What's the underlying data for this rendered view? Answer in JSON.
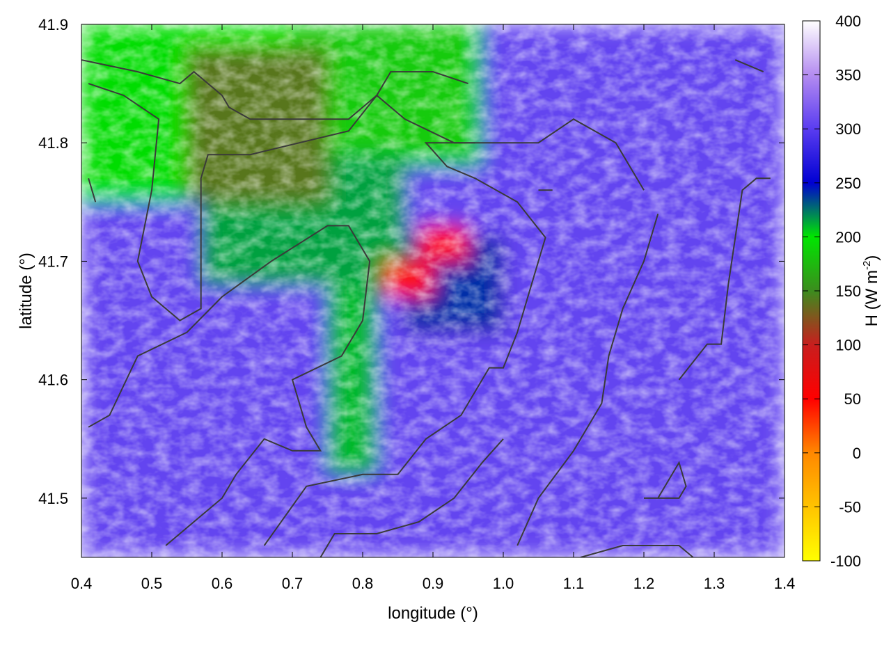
{
  "chart_data": {
    "type": "heatmap",
    "xlabel": "longitude (°)",
    "ylabel": "latitude (°)",
    "xlim": [
      0.4,
      1.4
    ],
    "ylim": [
      41.45,
      41.9
    ],
    "xticks": [
      "0.4",
      "0.5",
      "0.6",
      "0.7",
      "0.8",
      "0.9",
      "1.0",
      "1.1",
      "1.2",
      "1.3",
      "1.4"
    ],
    "yticks": [
      "41.5",
      "41.6",
      "41.7",
      "41.8",
      "41.9"
    ],
    "xtick_values": [
      0.4,
      0.5,
      0.6,
      0.7,
      0.8,
      0.9,
      1.0,
      1.1,
      1.2,
      1.3,
      1.4
    ],
    "ytick_values": [
      41.5,
      41.6,
      41.7,
      41.8,
      41.9
    ],
    "colorbar": {
      "label": "H (W m",
      "label_sup": "-2",
      "label_end": ")",
      "range": [
        -100,
        400
      ],
      "ticks": [
        "400",
        "350",
        "300",
        "250",
        "200",
        "150",
        "100",
        "50",
        "0",
        "-50",
        "-100"
      ],
      "tick_values": [
        400,
        350,
        300,
        250,
        200,
        150,
        100,
        50,
        0,
        -50,
        -100
      ],
      "colors": [
        {
          "v": -100,
          "c": "#ffff00"
        },
        {
          "v": 0,
          "c": "#ff8800"
        },
        {
          "v": 50,
          "c": "#ff0000"
        },
        {
          "v": 100,
          "c": "#c81e1e"
        },
        {
          "v": 150,
          "c": "#3c8c1e"
        },
        {
          "v": 200,
          "c": "#00e600"
        },
        {
          "v": 250,
          "c": "#0000d2"
        },
        {
          "v": 300,
          "c": "#5a3cf0"
        },
        {
          "v": 350,
          "c": "#b48cf0"
        },
        {
          "v": 400,
          "c": "#ffffff"
        }
      ]
    },
    "regions": [
      {
        "lon": [
          0.4,
          1.4
        ],
        "lat": [
          41.45,
          41.9
        ],
        "value": 305
      },
      {
        "lon": [
          0.4,
          0.75
        ],
        "lat": [
          41.75,
          41.9
        ],
        "value": 195
      },
      {
        "lon": [
          0.7,
          0.97
        ],
        "lat": [
          41.78,
          41.9
        ],
        "value": 185
      },
      {
        "lon": [
          0.57,
          0.86
        ],
        "lat": [
          41.68,
          41.79
        ],
        "value": 215
      },
      {
        "lon": [
          0.75,
          0.82
        ],
        "lat": [
          41.52,
          41.68
        ],
        "value": 210
      },
      {
        "lon": [
          0.86,
          1.0
        ],
        "lat": [
          41.64,
          41.72
        ],
        "value": 240
      },
      {
        "lon": [
          0.55,
          0.75
        ],
        "lat": [
          41.75,
          41.88
        ],
        "value": 140
      },
      {
        "lon": [
          0.83,
          0.9
        ],
        "lat": [
          41.67,
          41.7
        ],
        "value": 45
      },
      {
        "lon": [
          0.88,
          0.95
        ],
        "lat": [
          41.7,
          41.73
        ],
        "value": 45
      }
    ],
    "contours": [
      [
        [
          0.4,
          41.87
        ],
        [
          0.48,
          41.86
        ],
        [
          0.54,
          41.85
        ],
        [
          0.56,
          41.86
        ],
        [
          0.6,
          41.84
        ],
        [
          0.61,
          41.83
        ],
        [
          0.64,
          41.82
        ],
        [
          0.72,
          41.82
        ],
        [
          0.78,
          41.82
        ],
        [
          0.82,
          41.84
        ],
        [
          0.84,
          41.86
        ],
        [
          0.9,
          41.86
        ],
        [
          0.95,
          41.85
        ]
      ],
      [
        [
          0.41,
          41.85
        ],
        [
          0.46,
          41.84
        ],
        [
          0.51,
          41.82
        ],
        [
          0.5,
          41.76
        ],
        [
          0.48,
          41.7
        ],
        [
          0.5,
          41.67
        ],
        [
          0.54,
          41.65
        ],
        [
          0.57,
          41.66
        ],
        [
          0.57,
          41.77
        ],
        [
          0.58,
          41.79
        ],
        [
          0.64,
          41.79
        ],
        [
          0.71,
          41.8
        ],
        [
          0.78,
          41.81
        ],
        [
          0.82,
          41.84
        ],
        [
          0.86,
          41.82
        ],
        [
          0.93,
          41.8
        ],
        [
          0.96,
          41.8
        ]
      ],
      [
        [
          0.41,
          41.56
        ],
        [
          0.44,
          41.57
        ],
        [
          0.48,
          41.62
        ],
        [
          0.55,
          41.64
        ],
        [
          0.6,
          41.67
        ],
        [
          0.67,
          41.7
        ],
        [
          0.75,
          41.73
        ],
        [
          0.78,
          41.73
        ],
        [
          0.81,
          41.7
        ],
        [
          0.8,
          41.65
        ],
        [
          0.77,
          41.62
        ],
        [
          0.7,
          41.6
        ],
        [
          0.72,
          41.56
        ],
        [
          0.74,
          41.54
        ],
        [
          0.7,
          41.54
        ],
        [
          0.66,
          41.55
        ],
        [
          0.62,
          41.52
        ],
        [
          0.6,
          41.5
        ],
        [
          0.56,
          41.48
        ],
        [
          0.52,
          41.46
        ]
      ],
      [
        [
          0.66,
          41.46
        ],
        [
          0.72,
          41.51
        ],
        [
          0.8,
          41.52
        ],
        [
          0.85,
          41.52
        ],
        [
          0.89,
          41.55
        ],
        [
          0.94,
          41.57
        ],
        [
          0.98,
          41.61
        ],
        [
          1.0,
          41.61
        ],
        [
          1.02,
          41.64
        ],
        [
          1.05,
          41.7
        ],
        [
          1.06,
          41.72
        ],
        [
          1.02,
          41.75
        ],
        [
          0.96,
          41.77
        ],
        [
          0.92,
          41.78
        ],
        [
          0.89,
          41.8
        ],
        [
          0.97,
          41.8
        ],
        [
          1.05,
          41.8
        ],
        [
          1.1,
          41.82
        ],
        [
          1.16,
          41.8
        ],
        [
          1.2,
          41.76
        ]
      ],
      [
        [
          1.02,
          41.46
        ],
        [
          1.05,
          41.5
        ],
        [
          1.1,
          41.54
        ],
        [
          1.14,
          41.58
        ],
        [
          1.15,
          41.62
        ],
        [
          1.17,
          41.66
        ],
        [
          1.2,
          41.7
        ],
        [
          1.22,
          41.74
        ]
      ],
      [
        [
          1.11,
          41.45
        ],
        [
          1.17,
          41.46
        ],
        [
          1.25,
          41.46
        ],
        [
          1.27,
          41.45
        ]
      ],
      [
        [
          0.74,
          41.45
        ],
        [
          0.76,
          41.47
        ],
        [
          0.82,
          41.47
        ],
        [
          0.88,
          41.48
        ],
        [
          0.93,
          41.5
        ],
        [
          0.97,
          41.53
        ],
        [
          1.0,
          41.55
        ]
      ],
      [
        [
          1.2,
          41.5
        ],
        [
          1.25,
          41.5
        ],
        [
          1.26,
          41.51
        ],
        [
          1.25,
          41.53
        ],
        [
          1.22,
          41.5
        ],
        [
          1.2,
          41.5
        ]
      ],
      [
        [
          1.25,
          41.6
        ],
        [
          1.29,
          41.63
        ],
        [
          1.31,
          41.63
        ],
        [
          1.32,
          41.68
        ],
        [
          1.33,
          41.72
        ],
        [
          1.34,
          41.76
        ],
        [
          1.36,
          41.77
        ],
        [
          1.38,
          41.77
        ]
      ],
      [
        [
          1.33,
          41.87
        ],
        [
          1.37,
          41.86
        ]
      ],
      [
        [
          0.41,
          41.77
        ],
        [
          0.42,
          41.75
        ]
      ],
      [
        [
          1.05,
          41.76
        ],
        [
          1.07,
          41.76
        ],
        [
          1.06,
          41.76
        ],
        [
          1.05,
          41.76
        ]
      ]
    ]
  }
}
